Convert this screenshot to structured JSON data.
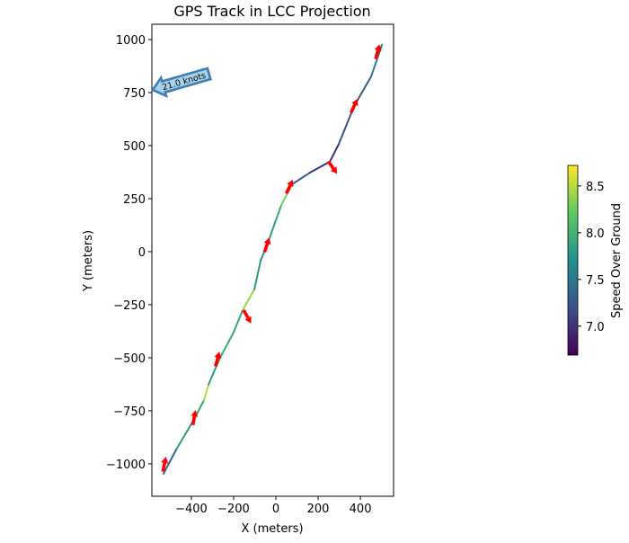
{
  "chart_data": {
    "type": "line",
    "title": "GPS Track in LCC Projection",
    "xlabel": "X (meters)",
    "ylabel": "Y (meters)",
    "xlim": [
      -587,
      557
    ],
    "ylim": [
      -1153,
      1072
    ],
    "xticks": [
      -400,
      -200,
      0,
      200,
      400
    ],
    "yticks": [
      -1000,
      -750,
      -500,
      -250,
      0,
      250,
      500,
      750,
      1000
    ],
    "grid": false,
    "track": {
      "x": [
        -532,
        -470,
        -391,
        -340,
        -319,
        -268,
        -200,
        -157,
        -102,
        -72,
        -38,
        0,
        26,
        77,
        162,
        255,
        298,
        370,
        451,
        502
      ],
      "y": [
        -1047,
        -930,
        -797,
        -700,
        -627,
        -508,
        -380,
        -275,
        -178,
        -42,
        42,
        148,
        220,
        318,
        373,
        424,
        508,
        686,
        826,
        975
      ],
      "speed": [
        7.4,
        7.8,
        7.9,
        8.5,
        7.8,
        7.9,
        7.9,
        8.4,
        7.8,
        7.7,
        7.8,
        7.9,
        8.3,
        7.2,
        7.0,
        7.0,
        7.2,
        7.3,
        7.5,
        7.6
      ]
    },
    "arrows": [
      {
        "x": -528,
        "y": -1004,
        "heading": 12
      },
      {
        "x": -387,
        "y": -784,
        "heading": 10
      },
      {
        "x": -277,
        "y": -508,
        "heading": 15
      },
      {
        "x": -136,
        "y": -305,
        "heading": 150
      },
      {
        "x": -43,
        "y": 30,
        "heading": 18
      },
      {
        "x": 64,
        "y": 305,
        "heading": 25
      },
      {
        "x": 268,
        "y": 398,
        "heading": 145
      },
      {
        "x": 370,
        "y": 686,
        "heading": 25
      },
      {
        "x": 481,
        "y": 941,
        "heading": 15
      }
    ],
    "annotation": {
      "text": "21.0 knots",
      "x": -587,
      "y": 760
    },
    "colorbar": {
      "label": "Speed Over Ground",
      "range": [
        6.69,
        8.72
      ],
      "ticks": [
        7.0,
        7.5,
        8.0,
        8.5
      ],
      "colormap": "viridis"
    },
    "colors": {
      "arrow": "#ff0000",
      "annotation_fill": "#a8d4ea",
      "annotation_edge": "#3f7fb5"
    }
  }
}
